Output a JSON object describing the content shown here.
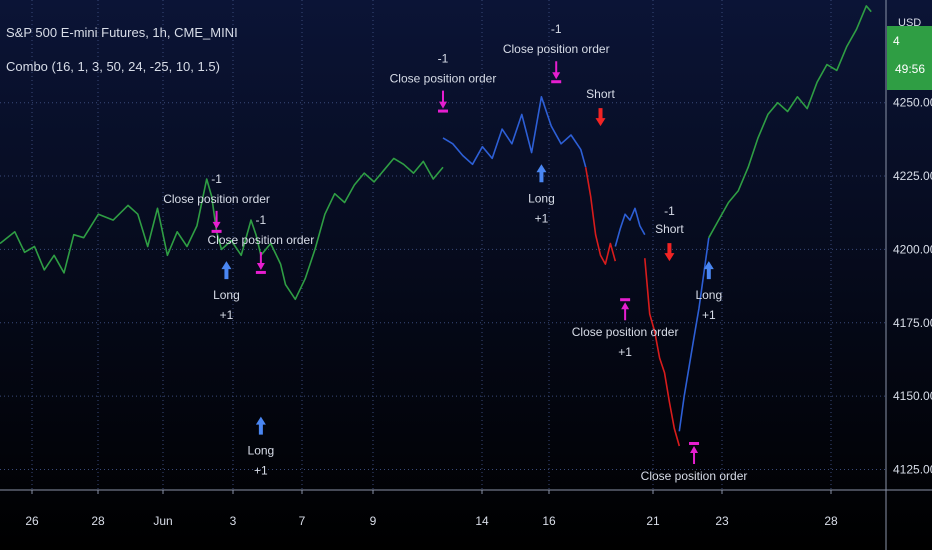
{
  "symbol_title": "S&P 500 E-mini Futures, 1h, CME_MINI",
  "indicator_legend": "Combo (16, 1, 3, 50, 24, -25, 10, 1.5)",
  "currency": "USD",
  "last_price_label": "4",
  "countdown": "49:56",
  "colors": {
    "background_top": "#0b1436",
    "background_bottom": "#000000",
    "price_up": "#2f9e44",
    "price_long": "#2d5fd6",
    "price_short": "#d91c1c",
    "long_arrow": "#4a86f2",
    "short_arrow": "#f22424",
    "close_marker": "#e61ecf",
    "text": "#d8dde8"
  },
  "chart_data": {
    "type": "line",
    "title": "S&P 500 E-mini Futures, 1h, CME_MINI",
    "x_tick_labels": [
      "26",
      "28",
      "Jun",
      "3",
      "7",
      "9",
      "14",
      "16",
      "21",
      "23",
      "28"
    ],
    "y_tick_labels": [
      "4125.00",
      "4150.00",
      "4175.00",
      "4200.00",
      "4225.00",
      "4250.00"
    ],
    "y_ticks": [
      4125,
      4150,
      4175,
      4200,
      4225,
      4250
    ],
    "ylim": [
      4118,
      4285
    ],
    "grid": true,
    "series": [
      {
        "color_key": "price_up",
        "points": [
          [
            0,
            4202
          ],
          [
            3,
            4206
          ],
          [
            5,
            4199
          ],
          [
            7,
            4201
          ],
          [
            9,
            4193
          ],
          [
            11,
            4198
          ],
          [
            13,
            4192
          ],
          [
            15,
            4205
          ],
          [
            17,
            4204
          ],
          [
            20,
            4212
          ],
          [
            23,
            4210
          ],
          [
            26,
            4215
          ],
          [
            28,
            4212
          ],
          [
            30,
            4201
          ],
          [
            32,
            4214
          ],
          [
            34,
            4198
          ],
          [
            36,
            4206
          ],
          [
            38,
            4201
          ],
          [
            40,
            4208
          ],
          [
            42,
            4224
          ],
          [
            43,
            4218
          ],
          [
            44,
            4206
          ],
          [
            45,
            4200
          ],
          [
            47,
            4203
          ],
          [
            49,
            4198
          ],
          [
            51,
            4210
          ],
          [
            52,
            4205
          ],
          [
            53,
            4198
          ],
          [
            55,
            4202
          ],
          [
            57,
            4195
          ],
          [
            58,
            4188
          ],
          [
            60,
            4183
          ],
          [
            62,
            4190
          ],
          [
            64,
            4200
          ],
          [
            66,
            4212
          ],
          [
            68,
            4219
          ],
          [
            70,
            4216
          ],
          [
            72,
            4222
          ],
          [
            74,
            4226
          ],
          [
            76,
            4223
          ],
          [
            78,
            4227
          ],
          [
            80,
            4231
          ],
          [
            82,
            4229
          ],
          [
            84,
            4226
          ],
          [
            86,
            4230
          ],
          [
            88,
            4224
          ],
          [
            90,
            4228
          ]
        ]
      },
      {
        "color_key": "price_long",
        "points": [
          [
            90,
            4238
          ],
          [
            92,
            4236
          ],
          [
            94,
            4232
          ],
          [
            96,
            4229
          ],
          [
            98,
            4235
          ],
          [
            100,
            4231
          ],
          [
            102,
            4241
          ],
          [
            104,
            4236
          ],
          [
            106,
            4246
          ],
          [
            108,
            4233
          ],
          [
            110,
            4252
          ],
          [
            112,
            4242
          ],
          [
            114,
            4236
          ],
          [
            116,
            4239
          ],
          [
            118,
            4234
          ],
          [
            119,
            4228
          ]
        ]
      },
      {
        "color_key": "price_short",
        "points": [
          [
            119,
            4228
          ],
          [
            120,
            4218
          ],
          [
            121,
            4205
          ],
          [
            122,
            4198
          ],
          [
            123,
            4195
          ],
          [
            124,
            4202
          ],
          [
            125,
            4196
          ]
        ]
      },
      {
        "color_key": "price_long",
        "points": [
          [
            125,
            4201
          ],
          [
            126,
            4207
          ],
          [
            127,
            4212
          ],
          [
            128,
            4210
          ],
          [
            129,
            4214
          ],
          [
            130,
            4208
          ],
          [
            131,
            4205
          ]
        ]
      },
      {
        "color_key": "price_short",
        "points": [
          [
            131,
            4197
          ],
          [
            132,
            4178
          ],
          [
            133,
            4172
          ],
          [
            134,
            4163
          ],
          [
            135,
            4158
          ],
          [
            136,
            4148
          ],
          [
            137,
            4139
          ],
          [
            138,
            4133
          ]
        ]
      },
      {
        "color_key": "price_long",
        "points": [
          [
            138,
            4138
          ],
          [
            139,
            4150
          ],
          [
            140,
            4160
          ],
          [
            141,
            4170
          ],
          [
            142,
            4180
          ],
          [
            143,
            4192
          ],
          [
            144,
            4204
          ]
        ]
      },
      {
        "color_key": "price_up",
        "points": [
          [
            144,
            4204
          ],
          [
            146,
            4210
          ],
          [
            148,
            4216
          ],
          [
            150,
            4220
          ],
          [
            152,
            4228
          ],
          [
            154,
            4238
          ],
          [
            156,
            4246
          ],
          [
            158,
            4250
          ],
          [
            160,
            4247
          ],
          [
            162,
            4252
          ],
          [
            164,
            4248
          ],
          [
            166,
            4257
          ],
          [
            168,
            4263
          ],
          [
            170,
            4261
          ],
          [
            172,
            4269
          ],
          [
            174,
            4275
          ],
          [
            176,
            4283
          ],
          [
            177,
            4281
          ]
        ]
      }
    ],
    "annotations": [
      {
        "kind": "close",
        "label": "Close position order",
        "qty": "-1",
        "x": 44,
        "y": 4207,
        "side": "above"
      },
      {
        "kind": "close",
        "label": "Close position order",
        "qty": "-1",
        "x": 53,
        "y": 4193,
        "side": "above"
      },
      {
        "kind": "long",
        "label": "Long",
        "qty": "+1",
        "x": 46,
        "y": 4196,
        "side": "below"
      },
      {
        "kind": "long",
        "label": "Long",
        "qty": "+1",
        "x": 53,
        "y": 4143,
        "side": "below"
      },
      {
        "kind": "close",
        "label": "Close position order",
        "qty": "-1",
        "x": 90,
        "y": 4248,
        "side": "above"
      },
      {
        "kind": "close",
        "label": "Close position order",
        "qty": "-1",
        "x": 113,
        "y": 4258,
        "side": "above"
      },
      {
        "kind": "long",
        "label": "Long",
        "qty": "+1",
        "x": 110,
        "y": 4229,
        "side": "below"
      },
      {
        "kind": "short",
        "label": "Short",
        "qty": "",
        "x": 122,
        "y": 4242,
        "side": "above"
      },
      {
        "kind": "short",
        "label": "Short",
        "qty": "-1",
        "x": 136,
        "y": 4196,
        "side": "above"
      },
      {
        "kind": "close",
        "label": "Close position order",
        "qty": "+1",
        "x": 127,
        "y": 4182,
        "side": "below"
      },
      {
        "kind": "long",
        "label": "Long",
        "qty": "+1",
        "x": 144,
        "y": 4196,
        "side": "below"
      },
      {
        "kind": "close",
        "label": "Close position order",
        "qty": "",
        "x": 141,
        "y": 4133,
        "side": "below"
      }
    ]
  }
}
